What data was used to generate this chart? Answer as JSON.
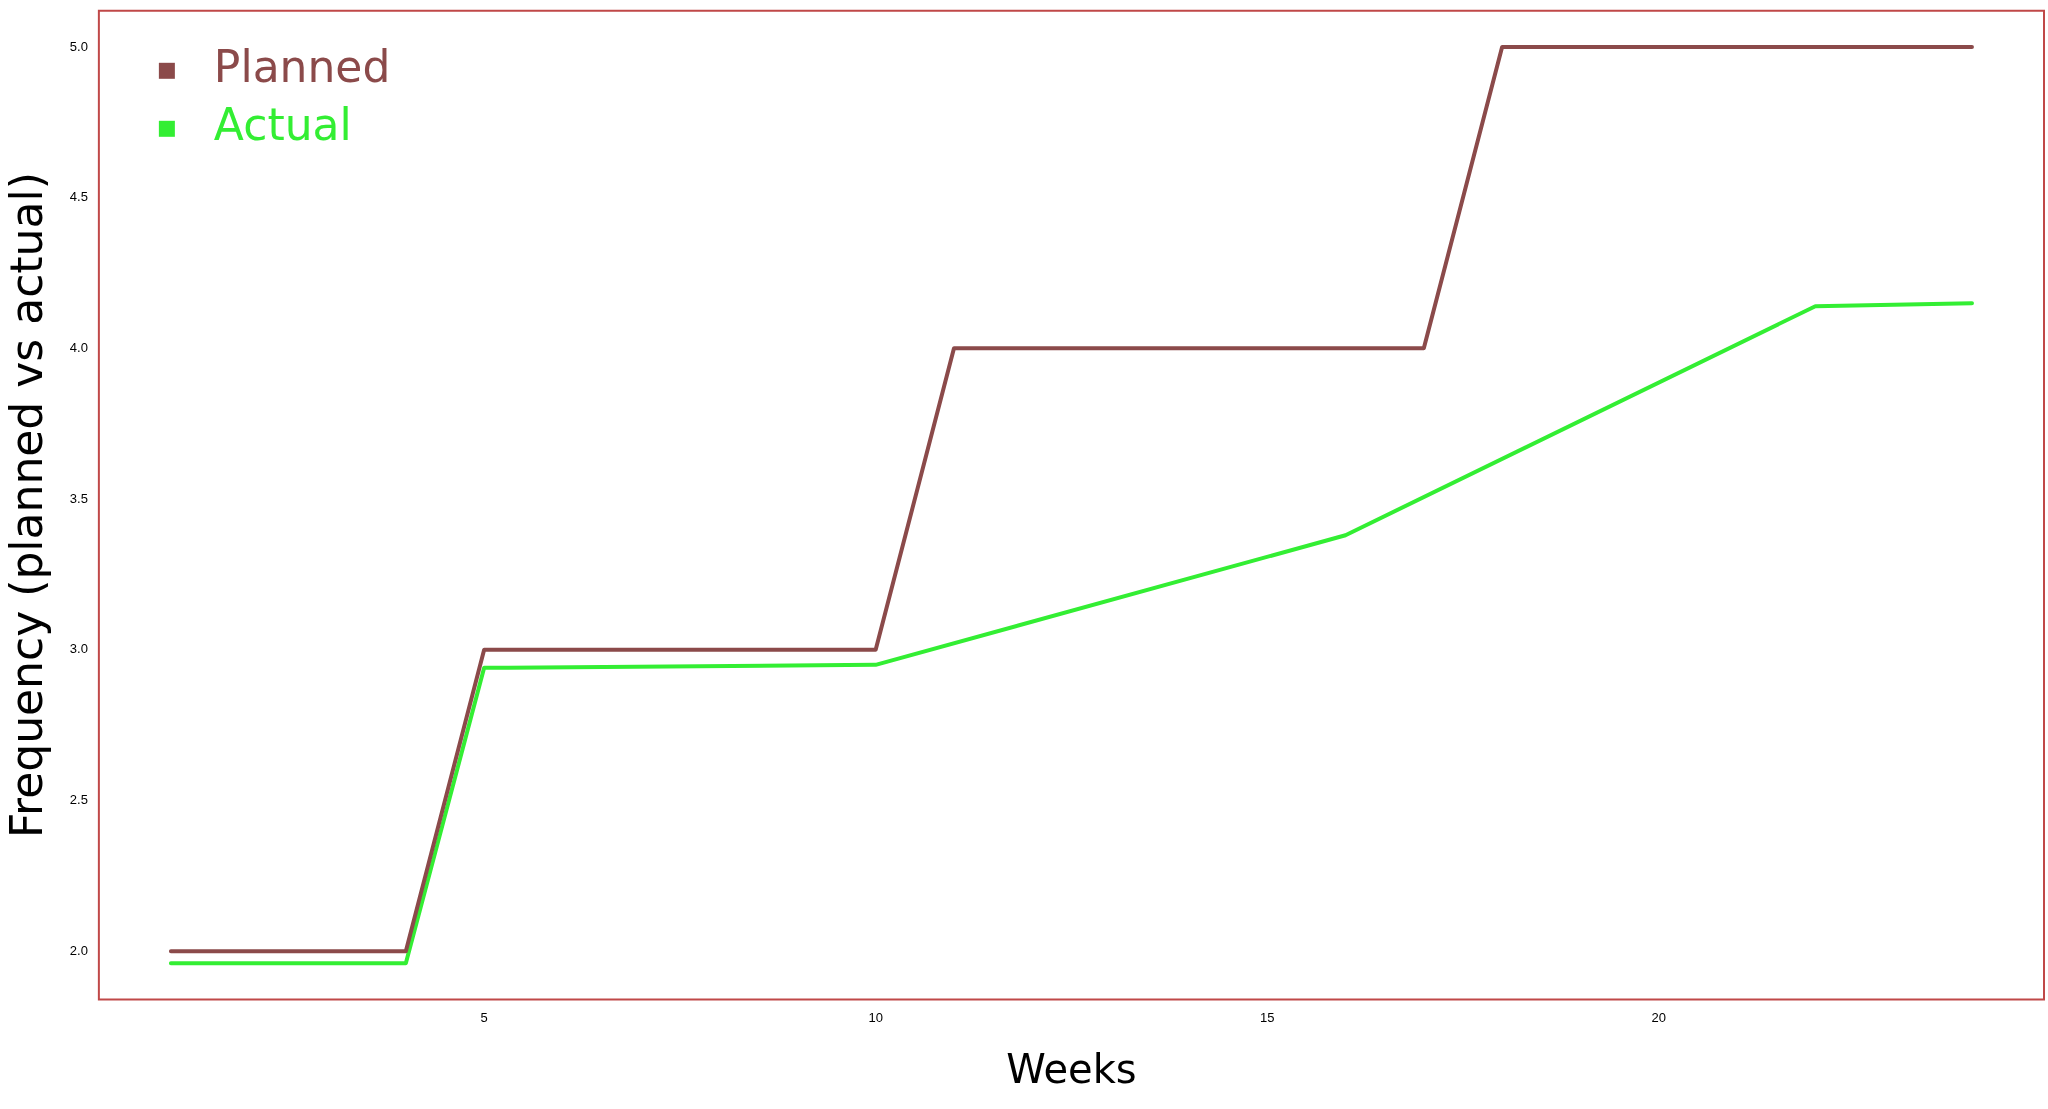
{
  "chart_data": {
    "type": "line",
    "xlabel": "Weeks",
    "ylabel": "Frequency (planned vs actual)",
    "xlim": [
      0.08,
      24.92
    ],
    "ylim": [
      1.84,
      5.12
    ],
    "xticks": [
      5,
      10,
      15,
      20
    ],
    "yticks": [
      {
        "value": 2,
        "label": "2.0"
      },
      2.5,
      {
        "value": 3,
        "label": "3.0"
      },
      3.5,
      {
        "value": 4,
        "label": "4.0"
      },
      4.5,
      {
        "value": 5,
        "label": "5.0"
      }
    ],
    "series": [
      {
        "name": "Planned",
        "color": "#8b4a4a",
        "x": [
          1,
          4,
          5,
          10,
          11,
          17,
          18,
          24
        ],
        "values": [
          2,
          2,
          3,
          3,
          4,
          4,
          5,
          5
        ]
      },
      {
        "name": "Actual",
        "color": "#33ee33",
        "x": [
          1,
          4,
          5,
          10,
          16,
          22,
          24
        ],
        "values": [
          1.96,
          1.96,
          2.94,
          2.95,
          3.38,
          4.14,
          4.15
        ]
      }
    ],
    "legend": "top left",
    "grid": false,
    "marker": "none",
    "line_style": "solid"
  }
}
